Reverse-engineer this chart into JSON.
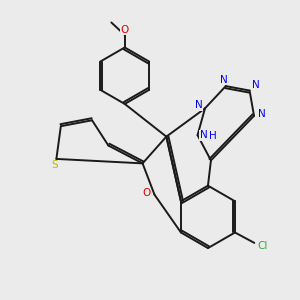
{
  "background_color": "#ebebeb",
  "bond_color": "#1a1a1a",
  "atom_colors": {
    "N": "#0000ee",
    "O": "#dd0000",
    "S": "#bbbb00",
    "Cl": "#33aa33",
    "H": "#0000ee"
  },
  "lw": 1.4,
  "fontsize": 7.5
}
